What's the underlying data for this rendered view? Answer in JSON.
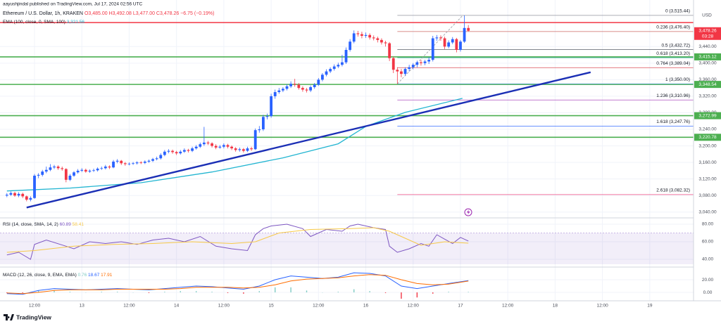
{
  "header": {
    "author_line": "aayushjindal published on TradingView.com, Jul 17, 2024 02:56 UTC",
    "symbol_line": "Ethereum / U.S. Dollar, 1h, KRAKEN",
    "ohlc_line": "O3,485.00  H3,492.08  L3,477.00  C3,478.26  −6.75 (−0.19%)",
    "ema_label": "EMA (100, close, 0, SMA, 100)",
    "ema_value": "3,321.56"
  },
  "chart_data": [
    {
      "type": "candlestick",
      "currency": "USD",
      "up_color": "#2962ff",
      "down_color": "#f23645",
      "xlim": [
        -8.75,
        167.1
      ],
      "ylim": [
        3026,
        3539
      ],
      "xticks": [
        {
          "value": 0,
          "label": "12:00"
        },
        {
          "value": 12,
          "label": "13"
        },
        {
          "value": 24,
          "label": "12:00"
        },
        {
          "value": 36,
          "label": "14"
        },
        {
          "value": 48,
          "label": "12:00"
        },
        {
          "value": 60,
          "label": "15"
        },
        {
          "value": 72,
          "label": "12:00"
        },
        {
          "value": 84,
          "label": "16"
        },
        {
          "value": 96,
          "label": "12:00"
        },
        {
          "value": 108,
          "label": "17"
        },
        {
          "value": 120,
          "label": "12:00"
        },
        {
          "value": 132,
          "label": "18"
        },
        {
          "value": 144,
          "label": "12:00"
        },
        {
          "value": 156,
          "label": "19"
        }
      ],
      "yticks": [
        {
          "value": 3040,
          "label": "3,040.00"
        },
        {
          "value": 3080,
          "label": "3,080.00"
        },
        {
          "value": 3120,
          "label": "3,120.00"
        },
        {
          "value": 3160,
          "label": "3,160.00"
        },
        {
          "value": 3200,
          "label": "3,200.00"
        },
        {
          "value": 3240,
          "label": "3,240.00"
        },
        {
          "value": 3280,
          "label": "3,280.00"
        },
        {
          "value": 3320,
          "label": "3,320.00"
        },
        {
          "value": 3360,
          "label": "3,360.00"
        },
        {
          "value": 3400,
          "label": "3,400.00"
        },
        {
          "value": 3440,
          "label": "3,440.00"
        }
      ],
      "x": [
        -7,
        -6,
        -5,
        -4,
        -3,
        -2,
        -1,
        0,
        1,
        2,
        3,
        4,
        5,
        6,
        7,
        8,
        9,
        10,
        11,
        12,
        13,
        14,
        15,
        16,
        17,
        18,
        19,
        20,
        21,
        22,
        23,
        24,
        25,
        26,
        27,
        28,
        29,
        30,
        31,
        32,
        33,
        34,
        35,
        36,
        37,
        38,
        39,
        40,
        41,
        42,
        43,
        44,
        45,
        46,
        47,
        48,
        49,
        50,
        51,
        52,
        53,
        54,
        55,
        56,
        57,
        58,
        59,
        60,
        61,
        62,
        63,
        64,
        65,
        66,
        67,
        68,
        69,
        70,
        71,
        72,
        73,
        74,
        75,
        76,
        77,
        78,
        79,
        80,
        81,
        82,
        83,
        84,
        85,
        86,
        87,
        88,
        89,
        90,
        91,
        92,
        93,
        94,
        95,
        96,
        97,
        98,
        99,
        100,
        101,
        102,
        103,
        104,
        105,
        106,
        107,
        108,
        109,
        110
      ],
      "open": [
        3080,
        3082,
        3086,
        3080,
        3084,
        3078,
        3070,
        3074,
        3128,
        3130,
        3138,
        3142,
        3148,
        3150,
        3146,
        3144,
        3118,
        3128,
        3136,
        3140,
        3142,
        3138,
        3140,
        3141,
        3145,
        3146,
        3150,
        3148,
        3162,
        3164,
        3158,
        3156,
        3157,
        3158,
        3160,
        3159,
        3162,
        3164,
        3168,
        3170,
        3178,
        3186,
        3188,
        3185,
        3182,
        3186,
        3190,
        3188,
        3194,
        3198,
        3204,
        3208,
        3206,
        3200,
        3196,
        3198,
        3202,
        3198,
        3194,
        3190,
        3192,
        3188,
        3194,
        3192,
        3238,
        3240,
        3270,
        3272,
        3320,
        3330,
        3334,
        3338,
        3344,
        3350,
        3348,
        3340,
        3336,
        3334,
        3342,
        3348,
        3360,
        3372,
        3380,
        3386,
        3392,
        3396,
        3402,
        3432,
        3452,
        3472,
        3470,
        3466,
        3468,
        3462,
        3460,
        3456,
        3450,
        3448,
        3412,
        3384,
        3380,
        3374,
        3386,
        3390,
        3396,
        3402,
        3400,
        3404,
        3408,
        3460,
        3462,
        3460,
        3440,
        3450,
        3458,
        3432,
        3452,
        3485
      ],
      "high": [
        3086,
        3090,
        3089,
        3088,
        3087,
        3080,
        3078,
        3132,
        3134,
        3142,
        3150,
        3156,
        3154,
        3153,
        3150,
        3146,
        3132,
        3139,
        3144,
        3146,
        3145,
        3143,
        3145,
        3148,
        3150,
        3154,
        3153,
        3166,
        3168,
        3166,
        3161,
        3160,
        3161,
        3163,
        3163,
        3165,
        3167,
        3171,
        3174,
        3182,
        3190,
        3192,
        3191,
        3188,
        3190,
        3194,
        3193,
        3198,
        3202,
        3208,
        3246,
        3212,
        3209,
        3204,
        3202,
        3206,
        3205,
        3201,
        3197,
        3196,
        3195,
        3198,
        3198,
        3242,
        3248,
        3275,
        3278,
        3326,
        3336,
        3340,
        3342,
        3349,
        3356,
        3362,
        3352,
        3344,
        3340,
        3346,
        3352,
        3364,
        3376,
        3385,
        3390,
        3397,
        3401,
        3420,
        3438,
        3458,
        3479,
        3478,
        3476,
        3474,
        3472,
        3467,
        3464,
        3460,
        3454,
        3451,
        3416,
        3390,
        3386,
        3390,
        3396,
        3400,
        3406,
        3408,
        3408,
        3414,
        3466,
        3468,
        3467,
        3464,
        3455,
        3463,
        3461,
        3456,
        3515.44,
        3492.08
      ],
      "low": [
        3076,
        3079,
        3077,
        3076,
        3074,
        3066,
        3066,
        3072,
        3122,
        3126,
        3134,
        3139,
        3144,
        3142,
        3140,
        3112,
        3115,
        3125,
        3133,
        3137,
        3135,
        3135,
        3137,
        3138,
        3142,
        3143,
        3144,
        3146,
        3158,
        3154,
        3152,
        3153,
        3154,
        3155,
        3156,
        3156,
        3159,
        3161,
        3165,
        3167,
        3175,
        3182,
        3181,
        3178,
        3179,
        3183,
        3184,
        3185,
        3191,
        3195,
        3200,
        3202,
        3196,
        3192,
        3193,
        3194,
        3194,
        3190,
        3186,
        3186,
        3184,
        3185,
        3188,
        3190,
        3232,
        3236,
        3264,
        3268,
        3314,
        3326,
        3330,
        3334,
        3340,
        3343,
        3336,
        3331,
        3329,
        3330,
        3338,
        3345,
        3356,
        3368,
        3376,
        3382,
        3388,
        3392,
        3398,
        3428,
        3448,
        3464,
        3460,
        3461,
        3457,
        3455,
        3450,
        3445,
        3440,
        3405,
        3376,
        3350,
        3366,
        3370,
        3380,
        3385,
        3390,
        3394,
        3395,
        3398,
        3404,
        3454,
        3454,
        3434,
        3436,
        3446,
        3426,
        3428,
        3449,
        3477
      ],
      "close": [
        3082,
        3086,
        3080,
        3084,
        3078,
        3070,
        3074,
        3128,
        3130,
        3138,
        3142,
        3148,
        3150,
        3146,
        3144,
        3118,
        3128,
        3136,
        3140,
        3142,
        3138,
        3140,
        3141,
        3145,
        3146,
        3150,
        3148,
        3162,
        3164,
        3158,
        3156,
        3157,
        3158,
        3160,
        3159,
        3162,
        3164,
        3168,
        3170,
        3178,
        3186,
        3188,
        3185,
        3182,
        3186,
        3190,
        3188,
        3194,
        3198,
        3204,
        3208,
        3206,
        3200,
        3196,
        3198,
        3202,
        3198,
        3194,
        3190,
        3192,
        3188,
        3194,
        3192,
        3238,
        3240,
        3270,
        3272,
        3320,
        3330,
        3334,
        3338,
        3344,
        3350,
        3348,
        3340,
        3336,
        3334,
        3342,
        3348,
        3360,
        3372,
        3380,
        3386,
        3392,
        3396,
        3402,
        3432,
        3452,
        3472,
        3470,
        3466,
        3468,
        3462,
        3460,
        3456,
        3450,
        3448,
        3412,
        3384,
        3380,
        3374,
        3386,
        3390,
        3396,
        3402,
        3400,
        3404,
        3408,
        3460,
        3462,
        3460,
        3440,
        3450,
        3458,
        3432,
        3452,
        3485,
        3478.26
      ],
      "ema": {
        "color": "#22b5d1",
        "x": [
          -7,
          9,
          27,
          45,
          63,
          77,
          84,
          94,
          108.5
        ],
        "values": [
          3091,
          3098,
          3111,
          3137,
          3171,
          3205,
          3247,
          3281,
          3315
        ]
      },
      "trendline": {
        "color": "#1b2fb5",
        "x": [
          -2,
          141
        ],
        "values": [
          3051,
          3378
        ]
      },
      "levels": [
        {
          "value": 3498,
          "color": "#f23645"
        },
        {
          "value": 3415.12,
          "label": "3,415.12",
          "color": "#4caf50"
        },
        {
          "value": 3348.54,
          "label": "3,348.54",
          "color": "#4caf50"
        },
        {
          "value": 3272.99,
          "label": "3,272.99",
          "color": "#4caf50"
        },
        {
          "value": 3220.78,
          "label": "3,220.78",
          "color": "#4caf50"
        }
      ],
      "fib_start_x": 92,
      "fib_anchor_x": [
        92,
        108.6
      ],
      "fib": [
        {
          "label": "0 (3,515.44)",
          "value": 3515.44,
          "color": "#787b86"
        },
        {
          "label": "0.236 (3,476.40)",
          "value": 3476.4,
          "color": "#c2463f"
        },
        {
          "label": "0.5 (3,432.72)",
          "value": 3432.72,
          "color": "#4c525e"
        },
        {
          "label": "0.618 (3,413.20)",
          "value": 3413.2,
          "color": "#089981"
        },
        {
          "label": "0.764 (3,389.04)",
          "value": 3389.04,
          "color": "#d1232a"
        },
        {
          "label": "1 (3,350.00)",
          "value": 3350.0,
          "color": "#5b9cf6"
        },
        {
          "label": "1.236 (3,310.96)",
          "value": 3310.96,
          "color": "#9c27b0"
        },
        {
          "label": "1.618 (3,247.76)",
          "value": 3247.76,
          "color": "#2962ff"
        },
        {
          "label": "2.618 (3,082.32)",
          "value": 3082.32,
          "color": "#e91e63"
        }
      ],
      "last_price": {
        "value": 3478.26,
        "label": "3,478.26",
        "countdown": "03:28",
        "color": "#f23645"
      }
    },
    {
      "type": "line",
      "title": "RSI (14, close, SMA, 14, 2)",
      "ylim": [
        34.4,
        85.6
      ],
      "band": [
        30,
        70
      ],
      "band_color": "#7e57c2",
      "yticks": [
        {
          "value": 80,
          "label": "80.00"
        },
        {
          "value": 60,
          "label": "60.00"
        },
        {
          "value": 40,
          "label": "40.00"
        }
      ],
      "series": [
        {
          "value_label": "60.89",
          "color": "#7e57c2",
          "x": [
            -7,
            -4,
            -1,
            0,
            3,
            8,
            10,
            14,
            18,
            22,
            26,
            30,
            34,
            38,
            42,
            46,
            50,
            54,
            56,
            58,
            60,
            64,
            68,
            70,
            74,
            78,
            80,
            82,
            86,
            89,
            90,
            92,
            95,
            98,
            100,
            102,
            104,
            106,
            108,
            110
          ],
          "values": [
            45,
            48,
            40,
            57,
            62,
            55,
            52,
            60,
            58,
            60,
            57,
            62,
            64,
            60,
            66,
            55,
            52,
            50,
            68,
            75,
            78,
            80,
            75,
            66,
            74,
            72,
            78,
            80,
            76,
            74,
            55,
            48,
            52,
            58,
            55,
            68,
            63,
            58,
            65,
            60.89
          ]
        },
        {
          "value_label": "58.41",
          "color": "#f7c948",
          "x": [
            -7,
            0,
            10,
            20,
            30,
            40,
            50,
            56,
            62,
            70,
            80,
            86,
            90,
            94,
            98,
            104,
            110
          ],
          "values": [
            48,
            50,
            55,
            57,
            58,
            60,
            58,
            60,
            70,
            74,
            75,
            76,
            72,
            64,
            56,
            60,
            58.41
          ]
        }
      ]
    },
    {
      "type": "macd",
      "title": "MACD (12, 26, close, 9, EMA, EMA)",
      "ylim": [
        -13.3,
        35.6
      ],
      "yticks": [
        {
          "value": 20,
          "label": "20.00"
        },
        {
          "value": 0,
          "label": "0.00"
        }
      ],
      "x": [
        -7,
        -3,
        1,
        5,
        9,
        13,
        17,
        21,
        25,
        29,
        33,
        37,
        41,
        45,
        49,
        53,
        57,
        61,
        65,
        69,
        73,
        77,
        81,
        85,
        89,
        93,
        97,
        101,
        105,
        110
      ],
      "series": [
        {
          "value_label": "0.76",
          "kind": "histogram",
          "color": "#80cbc4",
          "down_color": "#f23645",
          "values": [
            -1,
            -1,
            3,
            3,
            1,
            0,
            1,
            1,
            0,
            -1,
            1,
            2,
            2,
            1,
            -1,
            -2,
            2,
            8,
            8,
            3,
            0,
            1,
            5,
            2,
            -1,
            -10,
            -8,
            -2,
            1,
            0.76
          ]
        },
        {
          "value_label": "18.67",
          "kind": "line",
          "color": "#2962ff",
          "values": [
            -2,
            -3,
            3,
            6,
            5,
            4,
            5,
            6,
            5,
            4,
            6,
            8,
            10,
            9,
            7,
            5,
            10,
            20,
            26,
            24,
            22,
            24,
            31,
            30,
            26,
            10,
            6,
            10,
            14,
            18.67
          ]
        },
        {
          "value_label": "17.91",
          "kind": "line",
          "color": "#ff6d00",
          "values": [
            -1,
            -2,
            0,
            3,
            4,
            4,
            4,
            5,
            5,
            5,
            5,
            6,
            8,
            8,
            8,
            7,
            8,
            12,
            18,
            21,
            22,
            23,
            26,
            28,
            27,
            20,
            14,
            12,
            13,
            17.91
          ]
        }
      ]
    }
  ],
  "footer": {
    "brand": "TradingView"
  }
}
